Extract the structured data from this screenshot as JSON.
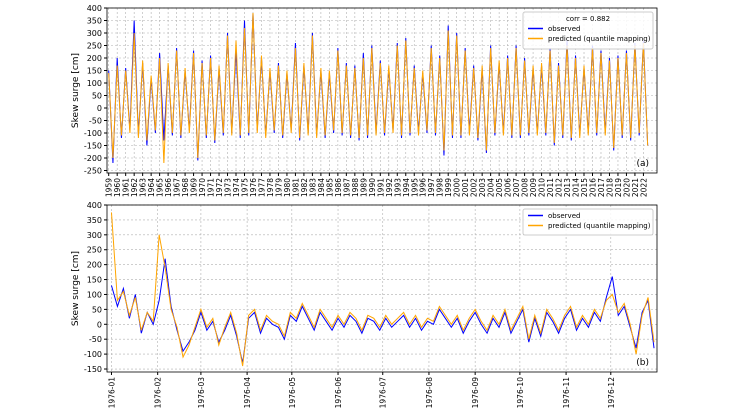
{
  "chart_data": [
    {
      "type": "line",
      "ylabel": "Skew surge [cm]",
      "legend_title": "corr = 0.882",
      "panel_label": "(a)",
      "legend_loc": "upper right",
      "grid": true,
      "xlim": [
        1958.8,
        2023.6
      ],
      "ylim": [
        -260,
        400
      ],
      "xticks": [
        1959,
        1960,
        1961,
        1962,
        1963,
        1964,
        1965,
        1966,
        1967,
        1968,
        1969,
        1970,
        1971,
        1972,
        1973,
        1974,
        1975,
        1976,
        1977,
        1978,
        1979,
        1980,
        1981,
        1982,
        1983,
        1984,
        1985,
        1986,
        1987,
        1988,
        1989,
        1990,
        1991,
        1992,
        1993,
        1994,
        1995,
        1996,
        1997,
        1998,
        1999,
        2000,
        2001,
        2002,
        2003,
        2004,
        2005,
        2006,
        2007,
        2008,
        2009,
        2010,
        2011,
        2012,
        2013,
        2014,
        2015,
        2016,
        2017,
        2018,
        2019,
        2020,
        2021,
        2022
      ],
      "yticks": [
        -250,
        -200,
        -150,
        -100,
        -50,
        0,
        50,
        100,
        150,
        200,
        250,
        300,
        350,
        400
      ],
      "x": [
        1959,
        1959.5,
        1960,
        1960.5,
        1961,
        1961.5,
        1962,
        1962.5,
        1963,
        1963.5,
        1964,
        1964.5,
        1965,
        1965.5,
        1966,
        1966.5,
        1967,
        1967.5,
        1968,
        1968.5,
        1969,
        1969.5,
        1970,
        1970.5,
        1971,
        1971.5,
        1972,
        1972.5,
        1973,
        1973.5,
        1974,
        1974.5,
        1975,
        1975.5,
        1976,
        1976.5,
        1977,
        1977.5,
        1978,
        1978.5,
        1979,
        1979.5,
        1980,
        1980.5,
        1981,
        1981.5,
        1982,
        1982.5,
        1983,
        1983.5,
        1984,
        1984.5,
        1985,
        1985.5,
        1986,
        1986.5,
        1987,
        1987.5,
        1988,
        1988.5,
        1989,
        1989.5,
        1990,
        1990.5,
        1991,
        1991.5,
        1992,
        1992.5,
        1993,
        1993.5,
        1994,
        1994.5,
        1995,
        1995.5,
        1996,
        1996.5,
        1997,
        1997.5,
        1998,
        1998.5,
        1999,
        1999.5,
        2000,
        2000.5,
        2001,
        2001.5,
        2002,
        2002.5,
        2003,
        2003.5,
        2004,
        2004.5,
        2005,
        2005.5,
        2006,
        2006.5,
        2007,
        2007.5,
        2008,
        2008.5,
        2009,
        2009.5,
        2010,
        2010.5,
        2011,
        2011.5,
        2012,
        2012.5,
        2013,
        2013.5,
        2014,
        2014.5,
        2015,
        2015.5,
        2016,
        2016.5,
        2017,
        2017.5,
        2018,
        2018.5,
        2019,
        2019.5,
        2020,
        2020.5,
        2021,
        2021.5,
        2022,
        2022.5
      ],
      "series": [
        {
          "name": "observed",
          "color": "#0000ff",
          "values": [
            150,
            -220,
            200,
            -120,
            160,
            -90,
            350,
            -110,
            180,
            -150,
            120,
            -100,
            220,
            -130,
            170,
            -110,
            240,
            -120,
            150,
            -90,
            230,
            -210,
            190,
            -120,
            210,
            -140,
            160,
            -110,
            300,
            -100,
            230,
            -120,
            350,
            -110,
            380,
            -90,
            200,
            -110,
            150,
            -100,
            180,
            -120,
            140,
            -90,
            260,
            -130,
            170,
            -100,
            300,
            -110,
            150,
            -120,
            140,
            -100,
            240,
            -110,
            180,
            -120,
            170,
            -130,
            220,
            -120,
            250,
            -100,
            190,
            -110,
            160,
            -90,
            260,
            -120,
            280,
            -110,
            170,
            -100,
            140,
            -100,
            250,
            -110,
            210,
            -190,
            330,
            -120,
            300,
            -120,
            240,
            -100,
            170,
            -130,
            160,
            -180,
            250,
            -110,
            180,
            -100,
            210,
            -120,
            250,
            -120,
            200,
            -110,
            160,
            -100,
            170,
            -110,
            240,
            -150,
            180,
            -120,
            270,
            -130,
            210,
            -110,
            160,
            -100,
            250,
            -110,
            230,
            -100,
            200,
            -170,
            210,
            -120,
            230,
            -130,
            260,
            -110,
            270,
            -150
          ]
        },
        {
          "name": "predicted (quantile mapping)",
          "color": "#ffa500",
          "values": [
            140,
            -200,
            170,
            -110,
            150,
            -100,
            300,
            -120,
            190,
            -130,
            130,
            -90,
            200,
            -220,
            180,
            -100,
            230,
            -110,
            160,
            -100,
            220,
            -200,
            180,
            -110,
            200,
            -130,
            170,
            -100,
            290,
            -110,
            270,
            -110,
            320,
            -100,
            380,
            -100,
            210,
            -120,
            160,
            -90,
            170,
            -110,
            150,
            -100,
            240,
            -120,
            180,
            -110,
            290,
            -120,
            160,
            -110,
            150,
            -90,
            230,
            -100,
            170,
            -110,
            160,
            -120,
            200,
            -110,
            240,
            -110,
            180,
            -100,
            170,
            -100,
            250,
            -110,
            270,
            -100,
            160,
            -110,
            150,
            -90,
            240,
            -100,
            200,
            -170,
            310,
            -110,
            290,
            -110,
            230,
            -110,
            160,
            -120,
            170,
            -170,
            240,
            -100,
            190,
            -110,
            200,
            -110,
            240,
            -110,
            190,
            -100,
            170,
            -110,
            180,
            -100,
            230,
            -140,
            170,
            -110,
            250,
            -120,
            200,
            -120,
            170,
            -110,
            240,
            -100,
            220,
            -110,
            190,
            -160,
            200,
            -110,
            220,
            -120,
            250,
            -100,
            260,
            -150
          ]
        }
      ]
    },
    {
      "type": "line",
      "ylabel": "Skew surge [cm]",
      "panel_label": "(b)",
      "legend_loc": "upper right",
      "grid": true,
      "xlim": [
        -3,
        366
      ],
      "ylim": [
        -160,
        400
      ],
      "xticks": [
        {
          "value": 0,
          "label": "1976-01"
        },
        {
          "value": 31,
          "label": "1976-02"
        },
        {
          "value": 60,
          "label": "1976-03"
        },
        {
          "value": 91,
          "label": "1976-04"
        },
        {
          "value": 121,
          "label": "1976-05"
        },
        {
          "value": 152,
          "label": "1976-06"
        },
        {
          "value": 182,
          "label": "1976-07"
        },
        {
          "value": 213,
          "label": "1976-08"
        },
        {
          "value": 244,
          "label": "1976-09"
        },
        {
          "value": 274,
          "label": "1976-10"
        },
        {
          "value": 305,
          "label": "1976-11"
        },
        {
          "value": 335,
          "label": "1976-12"
        }
      ],
      "yticks": [
        -150,
        -100,
        -50,
        0,
        50,
        100,
        150,
        200,
        250,
        300,
        350,
        400
      ],
      "x": [
        0,
        4,
        8,
        12,
        16,
        20,
        24,
        28,
        32,
        36,
        40,
        44,
        48,
        52,
        56,
        60,
        64,
        68,
        72,
        76,
        80,
        84,
        88,
        92,
        96,
        100,
        104,
        108,
        112,
        116,
        120,
        124,
        128,
        132,
        136,
        140,
        144,
        148,
        152,
        156,
        160,
        164,
        168,
        172,
        176,
        180,
        184,
        188,
        192,
        196,
        200,
        204,
        208,
        212,
        216,
        220,
        224,
        228,
        232,
        236,
        240,
        244,
        248,
        252,
        256,
        260,
        264,
        268,
        272,
        276,
        280,
        284,
        288,
        292,
        296,
        300,
        304,
        308,
        312,
        316,
        320,
        324,
        328,
        332,
        336,
        340,
        344,
        348,
        352,
        356,
        360,
        364
      ],
      "series": [
        {
          "name": "observed",
          "color": "#0000ff",
          "values": [
            130,
            60,
            120,
            20,
            100,
            -30,
            40,
            0,
            80,
            220,
            60,
            -20,
            -90,
            -60,
            -20,
            40,
            -20,
            10,
            -60,
            -20,
            30,
            -40,
            -130,
            20,
            40,
            -30,
            20,
            0,
            -10,
            -50,
            30,
            10,
            60,
            20,
            -20,
            40,
            10,
            -20,
            20,
            -10,
            30,
            10,
            -30,
            20,
            10,
            -20,
            20,
            -10,
            10,
            30,
            -10,
            20,
            -20,
            10,
            0,
            50,
            20,
            -10,
            20,
            -30,
            10,
            40,
            0,
            -30,
            20,
            -10,
            40,
            -30,
            10,
            50,
            -60,
            20,
            -40,
            40,
            10,
            -30,
            20,
            50,
            -20,
            20,
            -10,
            40,
            10,
            90,
            160,
            30,
            60,
            -10,
            -80,
            40,
            80,
            -80
          ]
        },
        {
          "name": "predicted (quantile mapping)",
          "color": "#ffa500",
          "values": [
            375,
            80,
            110,
            30,
            90,
            -20,
            40,
            10,
            300,
            190,
            50,
            -10,
            -110,
            -70,
            -10,
            50,
            -10,
            20,
            -70,
            -10,
            40,
            -30,
            -140,
            30,
            50,
            -20,
            30,
            10,
            0,
            -40,
            40,
            20,
            70,
            30,
            -10,
            50,
            20,
            -10,
            30,
            0,
            40,
            20,
            -20,
            30,
            20,
            -10,
            30,
            0,
            20,
            40,
            0,
            30,
            -10,
            20,
            10,
            60,
            30,
            0,
            30,
            -20,
            20,
            50,
            10,
            -20,
            30,
            0,
            50,
            -20,
            20,
            60,
            -50,
            30,
            -30,
            50,
            20,
            -20,
            30,
            60,
            -10,
            30,
            0,
            50,
            20,
            80,
            100,
            40,
            70,
            0,
            -100,
            30,
            90,
            -60
          ]
        }
      ]
    }
  ]
}
